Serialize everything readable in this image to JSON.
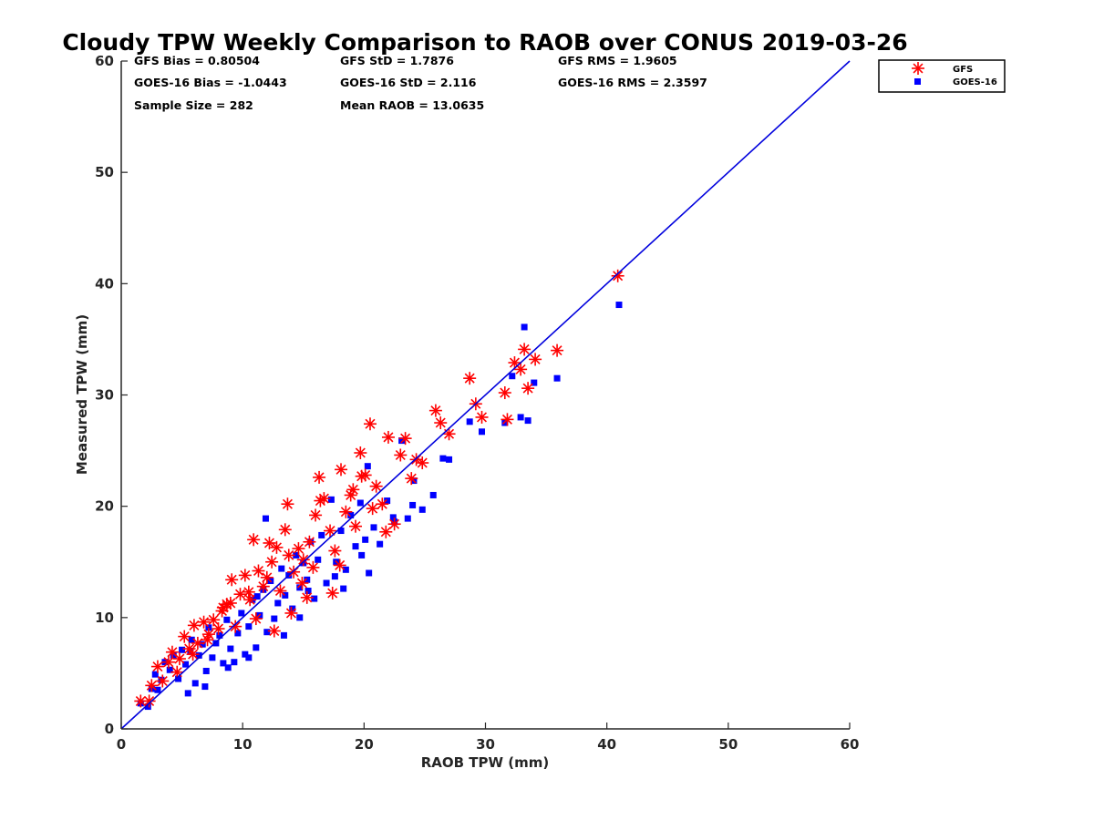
{
  "chart_data": {
    "type": "scatter",
    "title": "Cloudy TPW Weekly Comparison to RAOB over CONUS 2019-03-26",
    "xlabel": "RAOB TPW (mm)",
    "ylabel": "Measured TPW (mm)",
    "xlim": [
      0,
      60
    ],
    "ylim": [
      0,
      60
    ],
    "xticks": [
      "0",
      "10",
      "20",
      "30",
      "40",
      "50",
      "60"
    ],
    "yticks": [
      "0",
      "10",
      "20",
      "30",
      "40",
      "50",
      "60"
    ],
    "grid": false,
    "legend_position": "top-right outside",
    "reference_line": {
      "x": [
        0,
        60
      ],
      "y": [
        0,
        60
      ],
      "color": "#0000dd"
    },
    "stats": {
      "gfs_bias": "GFS Bias = 0.80504",
      "goes_bias": "GOES-16 Bias = -1.0443",
      "sample_size": "Sample Size = 282",
      "gfs_std": "GFS StD = 1.7876",
      "goes_std": "GOES-16 StD = 2.116",
      "mean_raob": "Mean RAOB = 13.0635",
      "gfs_rms": "GFS RMS = 1.9605",
      "goes_rms": "GOES-16 RMS = 2.3597"
    },
    "series": [
      {
        "name": "GFS",
        "color": "#ff0000",
        "marker": "asterisk",
        "x": [
          1.6,
          2.3,
          2.5,
          3.0,
          3.4,
          4.2,
          4.8,
          5.2,
          5.6,
          6.0,
          6.3,
          6.8,
          7.2,
          7.6,
          8.0,
          8.3,
          8.7,
          9.1,
          9.4,
          9.8,
          10.2,
          10.6,
          10.9,
          11.3,
          11.7,
          12.0,
          12.4,
          12.8,
          13.1,
          13.5,
          13.8,
          14.2,
          14.6,
          15.0,
          15.5,
          16.0,
          16.3,
          16.7,
          17.2,
          17.6,
          18.1,
          18.5,
          18.9,
          19.3,
          19.7,
          20.1,
          20.5,
          21.0,
          21.5,
          22.0,
          22.5,
          23.0,
          23.4,
          23.9,
          24.3,
          24.8,
          25.9,
          26.3,
          27.0,
          28.7,
          29.2,
          29.7,
          31.6,
          31.8,
          32.4,
          32.9,
          33.2,
          33.5,
          34.1,
          35.9,
          40.9,
          12.6,
          14.9,
          16.4,
          18.0,
          19.8,
          20.7,
          9.0,
          11.1,
          13.7,
          15.8,
          17.4,
          19.1,
          21.8,
          10.5,
          12.2,
          14.0,
          15.3,
          8.4,
          7.1,
          5.9,
          4.6,
          3.9
        ],
        "y": [
          2.5,
          2.5,
          3.9,
          5.6,
          4.3,
          6.9,
          6.3,
          8.3,
          7.2,
          9.3,
          7.7,
          9.6,
          8.5,
          9.8,
          9.0,
          10.6,
          11.2,
          13.4,
          9.2,
          12.1,
          13.8,
          11.6,
          17.0,
          14.2,
          12.8,
          13.6,
          15.0,
          16.3,
          12.4,
          17.9,
          15.6,
          14.1,
          16.2,
          15.2,
          16.8,
          19.2,
          22.6,
          20.7,
          17.8,
          16.0,
          23.3,
          19.5,
          21.0,
          18.2,
          24.8,
          22.8,
          27.4,
          21.8,
          20.2,
          26.2,
          18.4,
          24.6,
          26.1,
          22.5,
          24.2,
          23.9,
          28.6,
          27.5,
          26.5,
          31.5,
          29.2,
          28.0,
          30.2,
          27.8,
          32.9,
          32.3,
          34.1,
          30.6,
          33.2,
          34.0,
          40.7,
          8.8,
          13.1,
          20.5,
          14.7,
          22.7,
          19.8,
          11.3,
          9.9,
          20.2,
          14.5,
          12.2,
          21.5,
          17.7,
          12.3,
          16.7,
          10.4,
          11.8,
          10.9,
          8.0,
          6.7,
          5.1,
          6.0
        ]
      },
      {
        "name": "GOES-16",
        "color": "#0000ff",
        "marker": "square",
        "x": [
          1.6,
          2.2,
          2.5,
          2.8,
          3.0,
          3.3,
          3.6,
          4.0,
          4.3,
          4.7,
          5.0,
          5.3,
          5.5,
          5.8,
          6.1,
          6.4,
          6.7,
          7.0,
          7.2,
          7.5,
          7.8,
          8.1,
          8.4,
          8.7,
          9.0,
          9.3,
          9.6,
          9.9,
          10.2,
          10.5,
          10.8,
          11.1,
          11.4,
          11.7,
          12.0,
          12.3,
          12.6,
          12.9,
          13.2,
          13.5,
          13.8,
          14.1,
          14.4,
          14.7,
          15.0,
          15.3,
          15.6,
          15.9,
          16.2,
          16.5,
          16.9,
          17.3,
          17.7,
          18.1,
          18.5,
          18.9,
          19.3,
          19.7,
          20.1,
          20.4,
          20.8,
          21.3,
          21.9,
          22.5,
          23.1,
          23.6,
          24.1,
          24.8,
          25.7,
          26.5,
          27.0,
          28.7,
          29.7,
          31.6,
          32.2,
          32.9,
          33.2,
          33.5,
          34.0,
          35.9,
          41.0,
          5.7,
          6.9,
          8.8,
          10.5,
          11.2,
          11.9,
          13.4,
          14.7,
          15.4,
          17.6,
          18.3,
          19.8,
          20.3,
          22.4,
          24.0
        ],
        "y": [
          2.3,
          2.0,
          3.6,
          4.9,
          3.5,
          4.4,
          6.0,
          5.3,
          6.6,
          4.5,
          7.1,
          5.8,
          3.2,
          8.0,
          4.1,
          6.6,
          7.6,
          5.2,
          9.1,
          6.4,
          7.7,
          8.4,
          5.9,
          9.8,
          7.2,
          6.0,
          8.6,
          10.4,
          6.7,
          9.2,
          11.6,
          7.3,
          10.2,
          12.5,
          8.7,
          13.3,
          9.9,
          11.3,
          14.4,
          12.0,
          13.8,
          10.8,
          15.6,
          12.7,
          14.9,
          13.4,
          16.8,
          11.7,
          15.2,
          17.4,
          13.1,
          20.6,
          15.0,
          17.8,
          14.3,
          19.2,
          16.4,
          20.3,
          17.0,
          14.0,
          18.1,
          16.6,
          20.5,
          18.6,
          25.9,
          18.9,
          22.3,
          19.7,
          21.0,
          24.3,
          24.2,
          27.6,
          26.7,
          27.5,
          31.7,
          28.0,
          36.1,
          27.7,
          31.1,
          31.5,
          38.1,
          7.0,
          3.8,
          5.5,
          6.4,
          11.9,
          18.9,
          8.4,
          10.0,
          12.4,
          13.7,
          12.6,
          15.6,
          23.6,
          19.0,
          20.1
        ]
      }
    ]
  }
}
